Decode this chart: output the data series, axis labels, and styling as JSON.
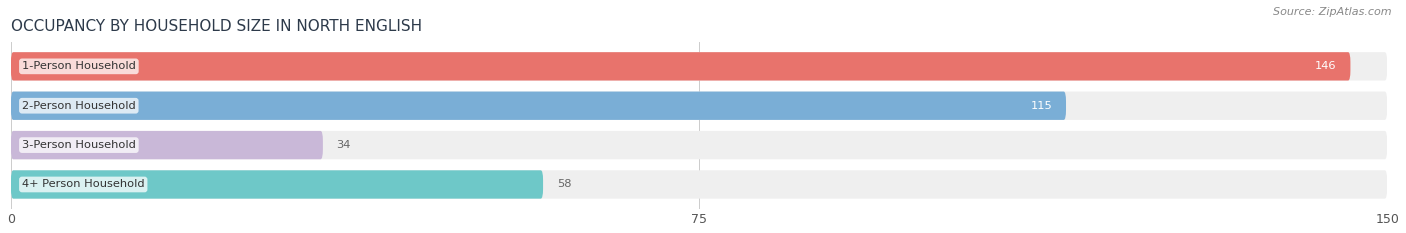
{
  "title": "OCCUPANCY BY HOUSEHOLD SIZE IN NORTH ENGLISH",
  "source": "Source: ZipAtlas.com",
  "categories": [
    "1-Person Household",
    "2-Person Household",
    "3-Person Household",
    "4+ Person Household"
  ],
  "values": [
    146,
    115,
    34,
    58
  ],
  "bar_colors": [
    "#e8736c",
    "#7aaed6",
    "#c9b8d8",
    "#6ec8c8"
  ],
  "bar_bg_color": "#efefef",
  "xlim": [
    0,
    150
  ],
  "xticks": [
    0,
    75,
    150
  ],
  "label_colors": [
    "white",
    "white",
    "#666666",
    "#666666"
  ],
  "figsize": [
    14.06,
    2.33
  ],
  "dpi": 100,
  "title_color": "#2d3a4a",
  "source_color": "#888888"
}
